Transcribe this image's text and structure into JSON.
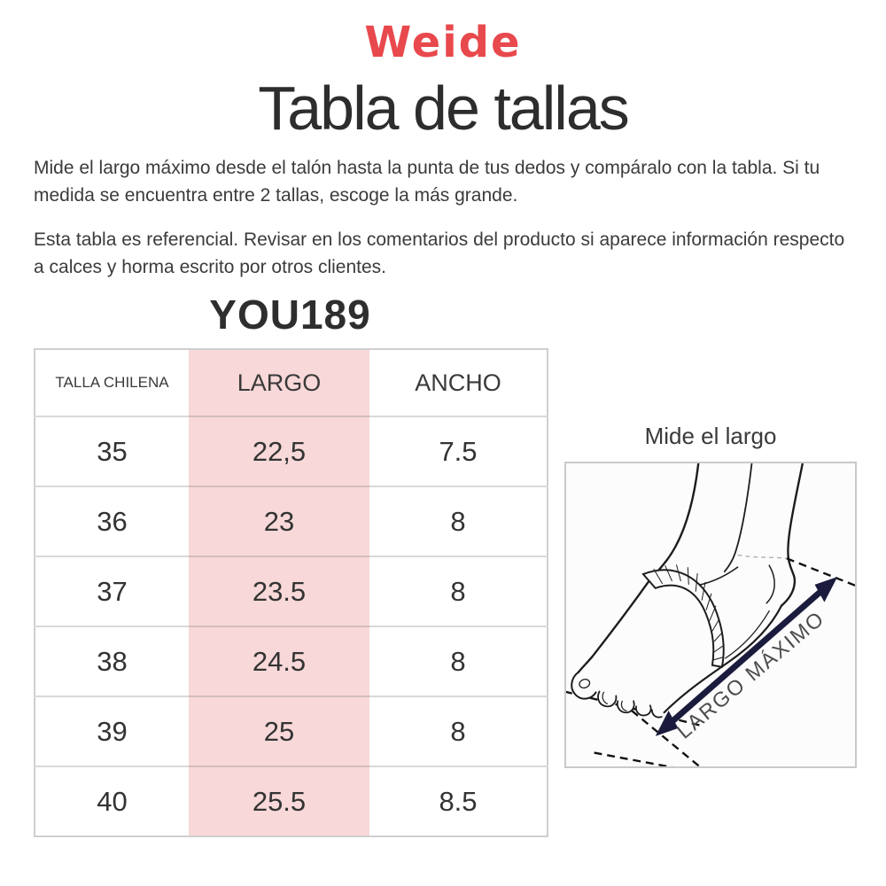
{
  "brand": {
    "logo_text": "Weide"
  },
  "page": {
    "title": "Tabla de tallas"
  },
  "instructions": {
    "paragraph1": "Mide el largo máximo desde el talón hasta la punta de tus dedos y compáralo con la tabla. Si tu medida se encuentra entre 2 tallas, escoge la más grande.",
    "paragraph2": "Esta tabla es referencial. Revisar en los comentarios del producto si aparece información respecto a calces y horma escrito por otros clientes."
  },
  "product": {
    "code": "YOU189"
  },
  "size_table": {
    "columns": [
      "TALLA CHILENA",
      "LARGO",
      "ANCHO"
    ],
    "highlight_column": "LARGO",
    "rows": [
      [
        "35",
        "22,5",
        "7.5"
      ],
      [
        "36",
        "23",
        "8"
      ],
      [
        "37",
        "23.5",
        "8"
      ],
      [
        "38",
        "24.5",
        "8"
      ],
      [
        "39",
        "25",
        "8"
      ],
      [
        "40",
        "25.5",
        "8.5"
      ]
    ]
  },
  "measure_guide": {
    "title": "Mide el largo",
    "diagram_label": "LARGO MÁXIMO"
  },
  "colors": {
    "brand_red": "#e8494d",
    "highlight_pink": "#f8d8d8",
    "arrow_navy": "#1b1b3d",
    "table_border": "#cfcfcf"
  }
}
